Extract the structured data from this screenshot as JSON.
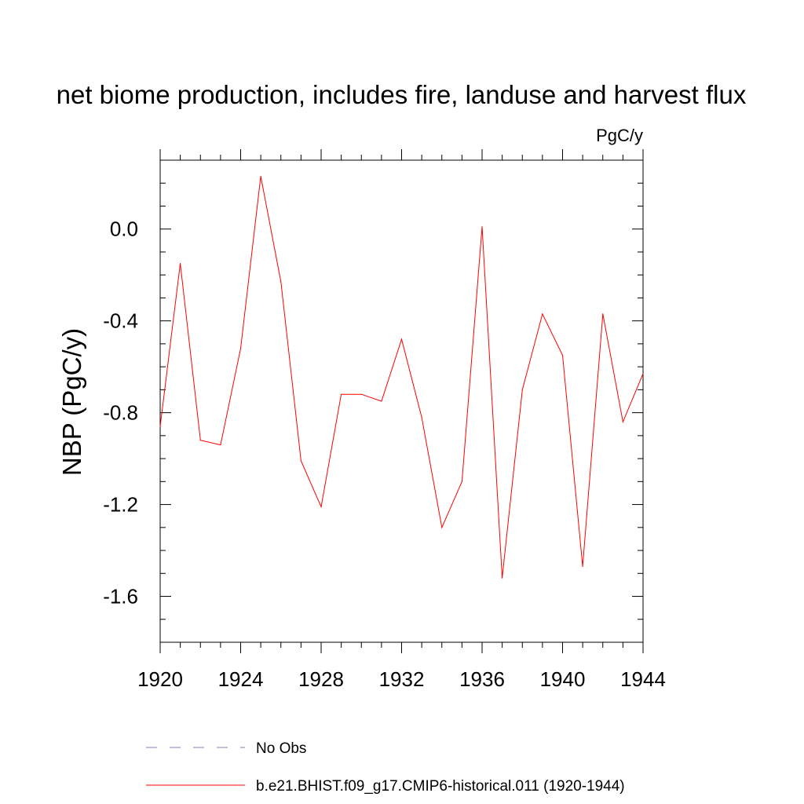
{
  "chart_data": {
    "type": "line",
    "title": "net biome production, includes fire, landuse and harvest flux",
    "units": "PgC/y",
    "ylabel": "NBP  (PgC/y)",
    "xlabel": "",
    "xlim": [
      1920,
      1944
    ],
    "ylim": [
      -1.8,
      0.3
    ],
    "x_ticks": [
      "1920",
      "1924",
      "1928",
      "1932",
      "1936",
      "1940",
      "1944"
    ],
    "y_ticks": [
      "0.0",
      "-0.4",
      "-0.8",
      "-1.2",
      "-1.6"
    ],
    "grid": false,
    "legend_position": "bottom",
    "series": [
      {
        "name": "b.e21.BHIST.f09_g17.CMIP6-historical.011 (1920-1944)",
        "color": "#ff0000",
        "style": "solid",
        "x": [
          1920,
          1921,
          1922,
          1923,
          1924,
          1925,
          1926,
          1927,
          1928,
          1929,
          1930,
          1931,
          1932,
          1933,
          1934,
          1935,
          1936,
          1937,
          1938,
          1939,
          1940,
          1941,
          1942,
          1943,
          1944
        ],
        "y": [
          -0.86,
          -0.15,
          -0.92,
          -0.94,
          -0.52,
          0.23,
          -0.23,
          -1.01,
          -1.21,
          -0.72,
          -0.72,
          -0.75,
          -0.48,
          -0.82,
          -1.3,
          -1.1,
          0.01,
          -1.52,
          -0.7,
          -0.37,
          -0.55,
          -1.47,
          -0.37,
          -0.84,
          -0.63
        ]
      }
    ],
    "legend": [
      {
        "label": "No Obs",
        "color": "#8080c0",
        "style": "dashed"
      },
      {
        "label": "b.e21.BHIST.f09_g17.CMIP6-historical.011 (1920-1944)",
        "color": "#ff0000",
        "style": "solid"
      }
    ]
  }
}
